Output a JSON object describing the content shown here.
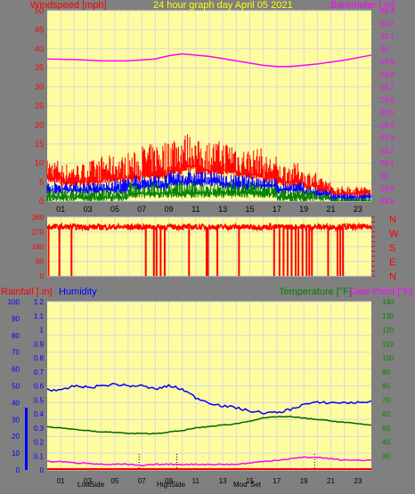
{
  "colors": {
    "frame": "#808080",
    "background": "#fffca0",
    "grid": "#d8d8d8",
    "windspeed": "#ff0000",
    "gust": "#ff0000",
    "average": "#0000ff",
    "low": "#008000",
    "barometer": "#ff00ff",
    "direction": "#ff0000",
    "rainfall": "#ff0000",
    "humidity": "#0000ff",
    "temperature": "#006400",
    "dewpoint": "#ff00ff",
    "title": "#ffff00",
    "rain_axis": "#0000ff",
    "temp_axis": "#008000"
  },
  "top_panel": {
    "left_label": "Windspeed [mph]",
    "title": "24 hour graph day   April 05 2021",
    "right_label": "Barometer [.in]"
  },
  "wind_dir_panel": {
    "compass": [
      "N",
      "W",
      "S",
      "E",
      "N"
    ]
  },
  "bottom_panel": {
    "rain_label": "Rainfall [.in]",
    "humidity_label": "Humidity",
    "temp_label": "Temperature [°F]",
    "dew_label": "Dew Point [°F]",
    "event_labels": [
      "Low",
      "Side",
      "High",
      "Side",
      "Mod",
      "Set"
    ]
  },
  "chart_data": [
    {
      "type": "line",
      "series": [
        {
          "name": "Windspeed [mph]",
          "axis": "left",
          "shape": "noisy-band",
          "base": [
            6,
            5,
            5,
            5,
            6,
            6,
            6,
            7,
            7,
            8,
            9,
            8,
            8,
            8,
            7,
            7,
            6,
            5,
            5,
            4,
            3,
            2,
            2,
            2
          ],
          "spread": [
            5,
            5,
            5,
            6,
            6,
            6,
            7,
            8,
            9,
            10,
            9,
            8,
            8,
            8,
            7,
            7,
            6,
            5,
            5,
            4,
            3,
            2,
            2,
            2
          ]
        },
        {
          "name": "Average",
          "axis": "left",
          "shape": "noisy-band",
          "base": [
            3,
            3,
            3,
            3,
            3,
            3,
            4,
            4,
            4,
            5,
            5,
            5,
            5,
            4,
            4,
            4,
            4,
            3,
            3,
            2,
            2,
            1,
            1,
            1
          ],
          "spread": [
            2,
            2,
            2,
            2,
            2,
            3,
            3,
            3,
            3,
            3,
            3,
            3,
            3,
            3,
            3,
            3,
            2,
            2,
            2,
            2,
            1,
            1,
            1,
            1
          ]
        },
        {
          "name": "Low",
          "axis": "left",
          "shape": "noisy-band",
          "base": [
            1,
            1,
            1,
            1,
            1,
            1,
            2,
            2,
            2,
            2,
            2,
            2,
            2,
            2,
            2,
            2,
            2,
            1,
            1,
            1,
            1,
            0,
            0,
            0
          ],
          "spread": [
            2,
            2,
            2,
            2,
            2,
            2,
            3,
            3,
            3,
            3,
            3,
            3,
            3,
            3,
            3,
            3,
            2,
            2,
            2,
            2,
            1,
            1,
            1,
            1
          ]
        },
        {
          "name": "Barometer [.in]",
          "axis": "right",
          "x": [
            0,
            2,
            4,
            6,
            8,
            9,
            10,
            12,
            14,
            16,
            17,
            18,
            20,
            22,
            24
          ],
          "y": [
            29.92,
            29.915,
            29.905,
            29.905,
            29.92,
            29.945,
            29.96,
            29.94,
            29.905,
            29.87,
            29.86,
            29.86,
            29.88,
            29.91,
            29.95
          ]
        }
      ],
      "xlim": [
        0,
        24
      ],
      "xticks": [
        "01",
        "03",
        "05",
        "07",
        "09",
        "11",
        "13",
        "15",
        "17",
        "19",
        "21",
        "23"
      ],
      "ylim_left": [
        0,
        50
      ],
      "yticks_left": [
        0,
        5,
        10,
        15,
        20,
        25,
        30,
        35,
        40,
        45,
        50
      ],
      "ylim_right": [
        28.8,
        30.3
      ],
      "yticks_right": [
        28.8,
        28.9,
        29,
        29.1,
        29.2,
        29.3,
        29.4,
        29.5,
        29.6,
        29.7,
        29.8,
        29.9,
        30,
        30.1,
        30.2,
        30.3
      ],
      "yticks_right_labels": [
        "28.8",
        "28.9",
        "29",
        "29.1",
        "29.2",
        "29.3",
        "29.4",
        "29.5",
        "29.6",
        "29.7",
        "29.8",
        "29.9",
        "30",
        "30.1",
        "30.2",
        "30.3"
      ],
      "grid": true
    },
    {
      "type": "line",
      "series": [
        {
          "name": "Wind direction",
          "base": 300,
          "dips_to": 0,
          "dips": [
            0.1,
            0.9,
            1.8,
            7.3,
            7.9,
            8.1,
            8.4,
            8.7,
            10.5,
            11.8,
            11.9,
            12.6,
            14.2,
            16.8,
            17.2,
            17.5,
            17.8,
            18.1,
            18.4,
            18.6,
            18.9,
            19.2,
            19.4,
            19.6,
            20.8,
            21.5,
            21.7,
            21.9
          ]
        }
      ],
      "xlim": [
        0,
        24
      ],
      "ylim": [
        0,
        360
      ],
      "yticks": [
        0,
        90,
        180,
        270,
        360
      ],
      "yticks_labels": [
        "0",
        "90",
        "180",
        "270",
        "360"
      ],
      "right_yticks": [
        0,
        30,
        60,
        90,
        120,
        150,
        180,
        210,
        240,
        270,
        300,
        330,
        360
      ],
      "grid": true
    },
    {
      "type": "line",
      "series": [
        {
          "name": "Humidity",
          "axis": "humidity",
          "x": [
            0,
            1,
            2,
            3,
            4,
            5,
            6,
            7,
            8,
            9,
            10,
            11,
            12,
            13,
            14,
            15,
            16,
            17,
            18,
            19,
            20,
            21,
            22,
            23,
            24
          ],
          "y": [
            48,
            47,
            50,
            49,
            50,
            51,
            50,
            50,
            48,
            50,
            48,
            43,
            40,
            38,
            37,
            35,
            34,
            34,
            36,
            39,
            40,
            40,
            40,
            40,
            41
          ]
        },
        {
          "name": "Temperature [°F]",
          "axis": "temp",
          "x": [
            0,
            1,
            2,
            3,
            4,
            5,
            6,
            7,
            8,
            9,
            10,
            11,
            12,
            13,
            14,
            15,
            16,
            17,
            18,
            19,
            20,
            21,
            22,
            23,
            24
          ],
          "y": [
            51,
            50,
            49,
            48,
            47,
            47,
            46,
            46,
            46,
            47,
            48,
            50,
            51,
            52,
            53,
            55,
            57,
            58,
            58,
            57,
            56,
            55,
            54,
            53,
            52
          ]
        },
        {
          "name": "Dew Point [°F]",
          "axis": "temp",
          "x": [
            0,
            1,
            2,
            3,
            4,
            5,
            6,
            7,
            8,
            9,
            10,
            11,
            12,
            13,
            14,
            15,
            16,
            17,
            18,
            19,
            20,
            21,
            22,
            23,
            24
          ],
          "y": [
            26,
            26,
            25,
            25,
            24,
            24,
            24,
            23,
            24,
            24,
            24,
            24,
            24,
            24,
            24,
            25,
            26,
            27,
            28,
            29,
            29,
            28,
            27,
            27,
            27
          ]
        },
        {
          "name": "Rainfall [.in]",
          "axis": "rain",
          "x": [
            0,
            24
          ],
          "y": [
            0,
            0
          ]
        }
      ],
      "xlim": [
        0,
        24
      ],
      "xticks": [
        "01",
        "03",
        "05",
        "07",
        "09",
        "11",
        "13",
        "15",
        "17",
        "19",
        "21",
        "23"
      ],
      "ylim_humidity": [
        0,
        100
      ],
      "yticks_humidity": [
        0,
        10,
        20,
        30,
        40,
        50,
        60,
        70,
        80,
        90,
        100
      ],
      "ylim_rain": [
        0,
        1.2
      ],
      "yticks_rain": [
        0,
        0.1,
        0.2,
        0.3,
        0.4,
        0.5,
        0.6,
        0.7,
        0.8,
        0.9,
        1,
        1.1,
        1.2
      ],
      "yticks_rain_labels": [
        "0",
        "0.1",
        "0.2",
        "0.3",
        "0.4",
        "0.5",
        "0.6",
        "0.7",
        "0.8",
        "0.9",
        "1",
        "1.1",
        "1.2"
      ],
      "ylim_temp": [
        20,
        140
      ],
      "yticks_temp": [
        30,
        40,
        50,
        60,
        70,
        80,
        90,
        100,
        110,
        120,
        130,
        140
      ],
      "events": [
        6.8,
        9.6,
        19.8
      ],
      "grid": true
    }
  ]
}
